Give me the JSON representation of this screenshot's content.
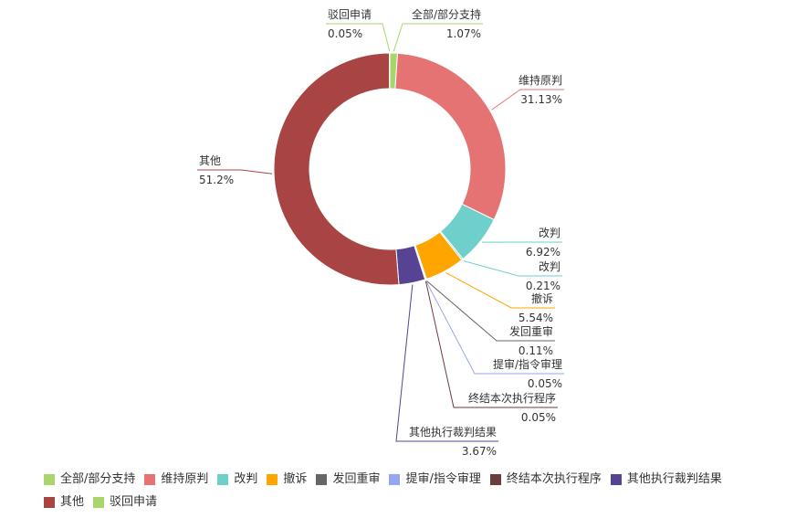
{
  "chart_data": {
    "type": "pie",
    "variant": "donut",
    "legend_position": "bottom",
    "slices": [
      {
        "name": "全部/部分支持",
        "value": 1.07,
        "label": "1.07%",
        "color": "#a8d66d"
      },
      {
        "name": "维持原判",
        "value": 31.13,
        "label": "31.13%",
        "color": "#e57373"
      },
      {
        "name": "改判",
        "value": 6.92,
        "label": "6.92%",
        "color": "#6fcfcb"
      },
      {
        "name": "改判",
        "value": 0.21,
        "label": "0.21%",
        "color": "#6fcfcb"
      },
      {
        "name": "撤诉",
        "value": 5.54,
        "label": "5.54%",
        "color": "#ffa500"
      },
      {
        "name": "发回重审",
        "value": 0.11,
        "label": "0.11%",
        "color": "#666666"
      },
      {
        "name": "提审/指令审理",
        "value": 0.05,
        "label": "0.05%",
        "color": "#93a6ef"
      },
      {
        "name": "终结本次执行程序",
        "value": 0.05,
        "label": "0.05%",
        "color": "#6d3b3b"
      },
      {
        "name": "其他执行裁判结果",
        "value": 3.67,
        "label": "3.67%",
        "color": "#574394"
      },
      {
        "name": "其他",
        "value": 51.2,
        "label": "51.2%",
        "color": "#a84444"
      },
      {
        "name": "驳回申请",
        "value": 0.05,
        "label": "0.05%",
        "color": "#a8d66d"
      }
    ],
    "legend": [
      {
        "name": "全部/部分支持",
        "color": "#a8d66d"
      },
      {
        "name": "维持原判",
        "color": "#e57373"
      },
      {
        "name": "改判",
        "color": "#6fcfcb"
      },
      {
        "name": "撤诉",
        "color": "#ffa500"
      },
      {
        "name": "发回重审",
        "color": "#666666"
      },
      {
        "name": "提审/指令审理",
        "color": "#93a6ef"
      },
      {
        "name": "终结本次执行程序",
        "color": "#6d3b3b"
      },
      {
        "name": "其他执行裁判结果",
        "color": "#574394"
      },
      {
        "name": "其他",
        "color": "#a84444"
      },
      {
        "name": "驳回申请",
        "color": "#a8d66d"
      }
    ]
  }
}
